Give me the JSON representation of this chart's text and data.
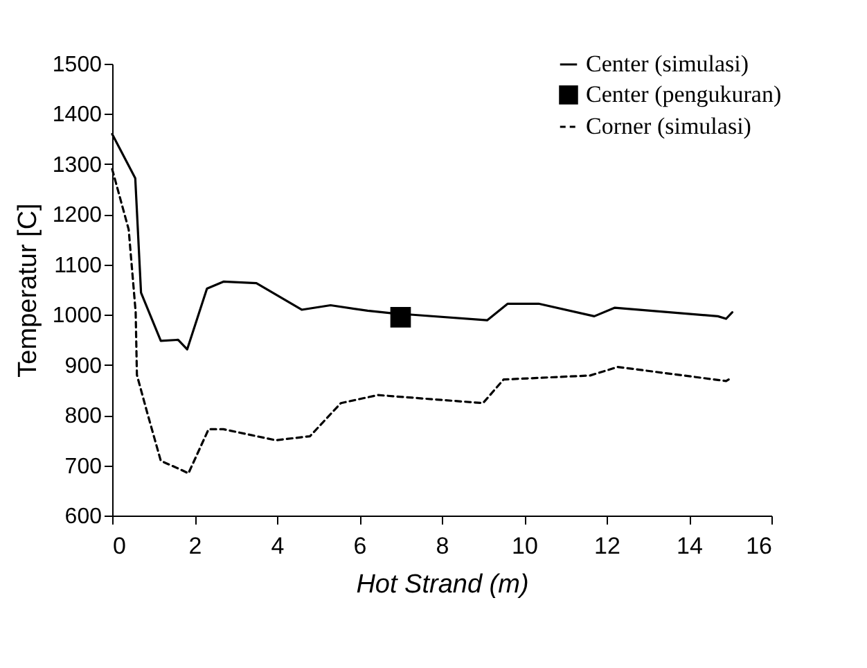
{
  "chart_data": {
    "type": "line",
    "xlabel": "Hot Strand (m)",
    "ylabel": "Temperatur [C]",
    "xlim": [
      0,
      16
    ],
    "xticks": [
      0,
      2,
      4,
      6,
      8,
      10,
      12,
      14,
      16
    ],
    "ylim": [
      600,
      1500
    ],
    "yticks": [
      600,
      700,
      800,
      900,
      1000,
      1100,
      1200,
      1300,
      1400,
      1500
    ],
    "grid": false,
    "legend": "top right",
    "series": [
      {
        "name": "Center (simulasi)",
        "color": "#000000",
        "line_style": "solid",
        "marker": "none",
        "x": [
          0,
          0.56,
          0.7,
          1.18,
          1.6,
          1.82,
          2.3,
          2.7,
          3.5,
          4.6,
          5.3,
          6.2,
          6.8,
          7.3,
          9.1,
          9.6,
          10.35,
          11.7,
          12.2,
          14.7,
          14.9,
          15.05
        ],
        "values": [
          1360,
          1272,
          1044,
          948,
          950,
          931,
          1052,
          1066,
          1063,
          1010,
          1019,
          1008,
          1003,
          1000,
          989,
          1022,
          1022,
          997,
          1014,
          997,
          992,
          1005
        ]
      },
      {
        "name": "Center (pengukuran)",
        "color": "#000000",
        "type": "scatter",
        "marker": "square",
        "x": [
          7.0
        ],
        "values": [
          995
        ]
      },
      {
        "name": "Corner (simulasi)",
        "color": "#000000",
        "line_style": "dashed",
        "marker": "none",
        "x": [
          0,
          0.4,
          0.57,
          0.6,
          0.85,
          1.18,
          1.65,
          1.85,
          2.34,
          2.7,
          3.97,
          4.8,
          5.55,
          6.45,
          9.0,
          9.5,
          11.6,
          12.27,
          14.9,
          15.0
        ],
        "values": [
          1290,
          1170,
          1005,
          880,
          805,
          709,
          692,
          684,
          772,
          772,
          750,
          758,
          824,
          840,
          824,
          871,
          879,
          896,
          868,
          873
        ]
      }
    ]
  }
}
